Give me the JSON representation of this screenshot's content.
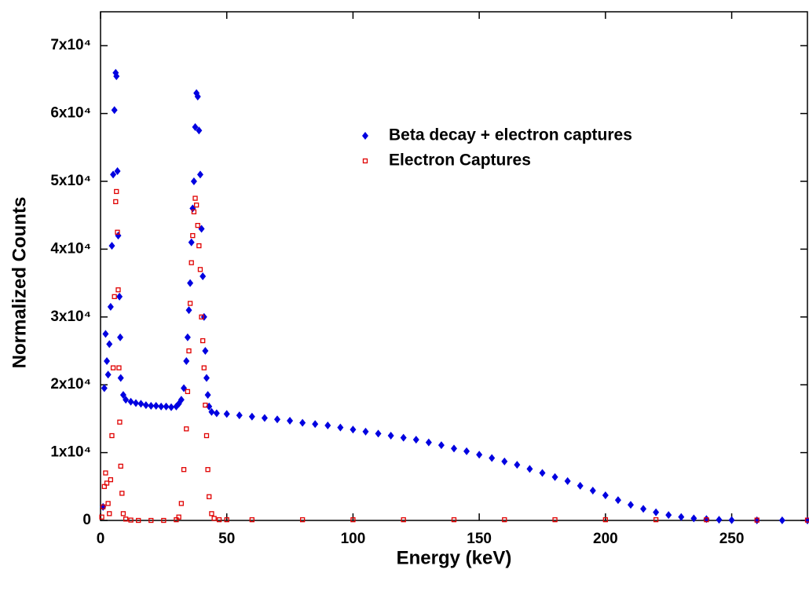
{
  "chart_data": {
    "type": "scatter",
    "x_label": "Energy (keV)",
    "y_label": "Normalized Counts",
    "xlim": [
      0,
      280
    ],
    "ylim": [
      0,
      75000
    ],
    "xticks": [
      0,
      50,
      100,
      150,
      200,
      250
    ],
    "yticks": [
      {
        "value": 0,
        "label": "0"
      },
      {
        "value": 10000,
        "label": "1x10⁴"
      },
      {
        "value": 20000,
        "label": "2x10⁴"
      },
      {
        "value": 30000,
        "label": "3x10⁴"
      },
      {
        "value": 40000,
        "label": "4x10⁴"
      },
      {
        "value": 50000,
        "label": "5x10⁴"
      },
      {
        "value": 60000,
        "label": "6x10⁴"
      },
      {
        "value": 70000,
        "label": "7x10⁴"
      }
    ],
    "legend": "upper right",
    "series": [
      {
        "name": "Beta decay + electron captures",
        "color": "#0000e0",
        "marker": "diamond",
        "x": [
          1,
          1.5,
          2,
          2.5,
          3,
          3.5,
          4,
          4.5,
          5,
          5.5,
          6,
          6.3,
          6.7,
          7,
          7.5,
          7.8,
          8,
          9,
          10,
          12,
          14,
          16,
          18,
          20,
          22,
          24,
          26,
          28,
          30,
          31,
          32,
          33,
          34,
          34.5,
          35,
          35.5,
          36,
          36.5,
          37,
          37.5,
          38,
          38.5,
          39,
          39.5,
          40,
          40.5,
          41,
          41.5,
          42,
          42.5,
          43,
          44,
          46,
          50,
          55,
          60,
          65,
          70,
          75,
          80,
          85,
          90,
          95,
          100,
          105,
          110,
          115,
          120,
          125,
          130,
          135,
          140,
          145,
          150,
          155,
          160,
          165,
          170,
          175,
          180,
          185,
          190,
          195,
          200,
          205,
          210,
          215,
          220,
          225,
          230,
          235,
          240,
          245,
          250,
          260,
          270,
          280
        ],
        "values": [
          2000,
          19500,
          27500,
          23500,
          21500,
          26000,
          31500,
          40500,
          51000,
          60500,
          66000,
          65500,
          51500,
          42000,
          33000,
          27000,
          21000,
          18500,
          17800,
          17500,
          17300,
          17200,
          17000,
          16900,
          16900,
          16800,
          16800,
          16700,
          16800,
          17200,
          17800,
          19500,
          23500,
          27000,
          31000,
          35000,
          41000,
          46000,
          50000,
          58000,
          63000,
          62500,
          57500,
          51000,
          43000,
          36000,
          30000,
          25000,
          21000,
          18500,
          16800,
          16000,
          15800,
          15700,
          15500,
          15300,
          15100,
          14900,
          14700,
          14400,
          14200,
          14000,
          13700,
          13400,
          13100,
          12800,
          12500,
          12200,
          11900,
          11500,
          11100,
          10600,
          10200,
          9700,
          9200,
          8700,
          8200,
          7600,
          7000,
          6400,
          5800,
          5100,
          4400,
          3700,
          3000,
          2300,
          1700,
          1200,
          800,
          500,
          300,
          200,
          100,
          50,
          20,
          10,
          0
        ]
      },
      {
        "name": "Electron Captures",
        "color": "#e00000",
        "marker": "open-square",
        "x": [
          0.5,
          1,
          1.5,
          2,
          2.5,
          3,
          3.5,
          4,
          4.5,
          5,
          5.5,
          6,
          6.3,
          6.7,
          7,
          7.3,
          7.6,
          8,
          8.5,
          9,
          10,
          12,
          15,
          20,
          25,
          30,
          31,
          32,
          33,
          34,
          34.5,
          35,
          35.5,
          36,
          36.5,
          37,
          37.5,
          38,
          38.5,
          39,
          39.5,
          40,
          40.5,
          41,
          41.5,
          42,
          42.5,
          43,
          44,
          45,
          47,
          50,
          60,
          80,
          100,
          120,
          140,
          160,
          180,
          200,
          220,
          240,
          260,
          280
        ],
        "values": [
          500,
          2000,
          5000,
          7000,
          5500,
          2500,
          1000,
          6000,
          12500,
          22500,
          33000,
          47000,
          48500,
          42500,
          34000,
          22500,
          14500,
          8000,
          4000,
          1000,
          200,
          50,
          0,
          0,
          0,
          100,
          500,
          2500,
          7500,
          13500,
          19000,
          25000,
          32000,
          38000,
          42000,
          45500,
          47500,
          46500,
          43500,
          40500,
          37000,
          30000,
          26500,
          22500,
          17000,
          12500,
          7500,
          3500,
          1000,
          300,
          100,
          100,
          100,
          100,
          100,
          100,
          100,
          100,
          100,
          100,
          100,
          100,
          50,
          50
        ]
      }
    ]
  }
}
